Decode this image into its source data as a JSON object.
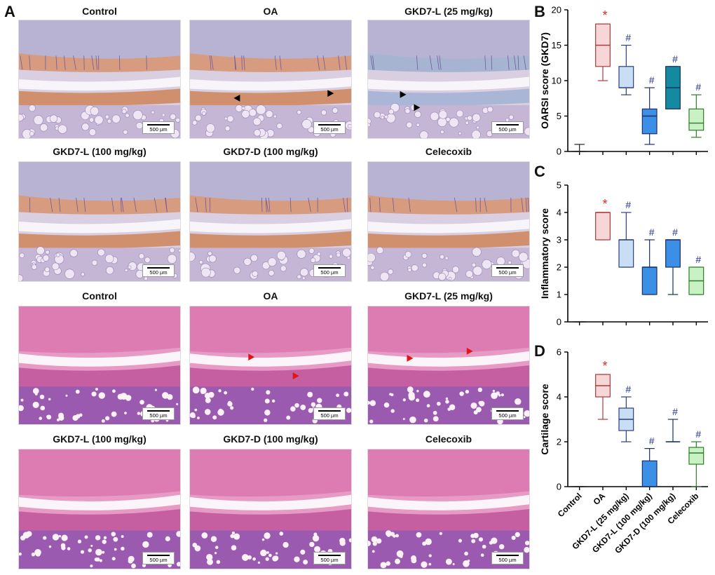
{
  "panel_letters": {
    "a": "A",
    "b": "B",
    "c": "C",
    "d": "D"
  },
  "colors": {
    "red": "#d62828",
    "navy": "#1f2f8a",
    "orange_stain": "#c8673a",
    "blue_stain": "#6f8fb8",
    "he_pink": "#d9689e",
    "he_purple": "#7e4fa6"
  },
  "safranin_images": [
    {
      "title": "Control",
      "scale": "500 µm",
      "arrows": []
    },
    {
      "title": "OA",
      "scale": "500 µm",
      "arrows": [
        "black",
        "black"
      ]
    },
    {
      "title": "GKD7-L (25 mg/kg)",
      "scale": "500 µm",
      "arrows": [
        "black",
        "black"
      ]
    },
    {
      "title": "GKD7-L (100 mg/kg)",
      "scale": "500 µm",
      "arrows": []
    },
    {
      "title": "GKD7-D (100 mg/kg)",
      "scale": "500 µm",
      "arrows": []
    },
    {
      "title": "Celecoxib",
      "scale": "500 µm",
      "arrows": []
    }
  ],
  "he_images": [
    {
      "title": "Control",
      "scale": "500 µm",
      "arrows": []
    },
    {
      "title": "OA",
      "scale": "500 µm",
      "arrows": [
        "red",
        "red"
      ]
    },
    {
      "title": "GKD7-L (25 mg/kg)",
      "scale": "500 µm",
      "arrows": [
        "red",
        "red"
      ]
    },
    {
      "title": "GKD7-L (100 mg/kg)",
      "scale": "500 µm",
      "arrows": []
    },
    {
      "title": "GKD7-D (100 mg/kg)",
      "scale": "500 µm",
      "arrows": []
    },
    {
      "title": "Celecoxib",
      "scale": "500 µm",
      "arrows": []
    }
  ],
  "chart_data": [
    {
      "type": "box",
      "panel": "B",
      "ylabel": "OARSI score (GKD7)",
      "ylim": [
        0,
        20
      ],
      "yticks": [
        0,
        5,
        10,
        15,
        20
      ],
      "categories": [
        "Control",
        "OA",
        "GKD7-L (25 mg/kg)",
        "GKD7-L (100 mg/kg)",
        "GKD7-D (100 mg/kg)",
        "Celecoxib"
      ],
      "boxes": [
        {
          "min": 0,
          "q1": 0,
          "median": 0,
          "q3": 0,
          "max": 1,
          "fill": "#ffffff",
          "stroke": "#222222",
          "mark": ""
        },
        {
          "min": 10,
          "q1": 12,
          "median": 15,
          "q3": 18,
          "max": 18,
          "fill": "#f6d6d6",
          "stroke": "#b23a3a",
          "mark": "*"
        },
        {
          "min": 8,
          "q1": 9,
          "median": 9,
          "q3": 12,
          "max": 15,
          "fill": "#c8def5",
          "stroke": "#2a3f7a",
          "mark": "#"
        },
        {
          "min": 1,
          "q1": 2.5,
          "median": 5,
          "q3": 6,
          "max": 9,
          "fill": "#3b8fe6",
          "stroke": "#1d2f66",
          "mark": "#"
        },
        {
          "min": 6,
          "q1": 6,
          "median": 9,
          "q3": 12,
          "max": 12,
          "fill": "#148aa0",
          "stroke": "#1d2f66",
          "mark": "#"
        },
        {
          "min": 2,
          "q1": 3,
          "median": 4,
          "q3": 6,
          "max": 8,
          "fill": "#c9f2c4",
          "stroke": "#2f7a2a",
          "mark": "#"
        }
      ]
    },
    {
      "type": "box",
      "panel": "C",
      "ylabel": "Inflammatory score",
      "ylim": [
        0,
        5
      ],
      "yticks": [
        0,
        1,
        2,
        3,
        4,
        5
      ],
      "categories": [
        "Control",
        "OA",
        "GKD7-L (25 mg/kg)",
        "GKD7-L (100 mg/kg)",
        "GKD7-D (100 mg/kg)",
        "Celecoxib"
      ],
      "boxes": [
        {
          "min": 0,
          "q1": 0,
          "median": 0,
          "q3": 0,
          "max": 0,
          "fill": "#ffffff",
          "stroke": "#222222",
          "mark": ""
        },
        {
          "min": 3,
          "q1": 3,
          "median": 4,
          "q3": 4,
          "max": 4,
          "fill": "#f6d6d6",
          "stroke": "#b23a3a",
          "mark": "*"
        },
        {
          "min": 2,
          "q1": 2,
          "median": 3,
          "q3": 3,
          "max": 4,
          "fill": "#c8def5",
          "stroke": "#2a3f7a",
          "mark": "#"
        },
        {
          "min": 1,
          "q1": 1,
          "median": 2,
          "q3": 2,
          "max": 3,
          "fill": "#3b8fe6",
          "stroke": "#1d2f66",
          "mark": "#"
        },
        {
          "min": 1,
          "q1": 2,
          "median": 3,
          "q3": 3,
          "max": 3,
          "fill": "#3b8fe6",
          "stroke": "#1d2f66",
          "mark": "#"
        },
        {
          "min": 1,
          "q1": 1,
          "median": 1.5,
          "q3": 2,
          "max": 2,
          "fill": "#c9f2c4",
          "stroke": "#2f7a2a",
          "mark": "#"
        }
      ]
    },
    {
      "type": "box",
      "panel": "D",
      "ylabel": "Cartilage score",
      "ylim": [
        0,
        6
      ],
      "yticks": [
        0,
        2,
        4,
        6
      ],
      "categories": [
        "Control",
        "OA",
        "GKD7-L (25 mg/kg)",
        "GKD7-L (100 mg/kg)",
        "GKD7-D (100 mg/kg)",
        "Celecoxib"
      ],
      "boxes": [
        {
          "min": 0,
          "q1": 0,
          "median": 0,
          "q3": 0,
          "max": 0,
          "fill": "#ffffff",
          "stroke": "#222222",
          "mark": ""
        },
        {
          "min": 3,
          "q1": 4,
          "median": 4.5,
          "q3": 5,
          "max": 5,
          "fill": "#f6d6d6",
          "stroke": "#b23a3a",
          "mark": "*"
        },
        {
          "min": 2,
          "q1": 2.5,
          "median": 3,
          "q3": 3.5,
          "max": 4,
          "fill": "#c8def5",
          "stroke": "#2a3f7a",
          "mark": "#"
        },
        {
          "min": 0,
          "q1": 0,
          "median": 0,
          "q3": 1.15,
          "max": 1.7,
          "fill": "#3b8fe6",
          "stroke": "#1d2f66",
          "mark": "#"
        },
        {
          "min": 2,
          "q1": 2,
          "median": 2,
          "q3": 2,
          "max": 3,
          "fill": "#3b8fe6",
          "stroke": "#1d2f66",
          "mark": "#"
        },
        {
          "min": 0,
          "q1": 1,
          "median": 1.5,
          "q3": 1.75,
          "max": 2,
          "fill": "#c9f2c4",
          "stroke": "#2f7a2a",
          "mark": "#"
        }
      ]
    }
  ]
}
